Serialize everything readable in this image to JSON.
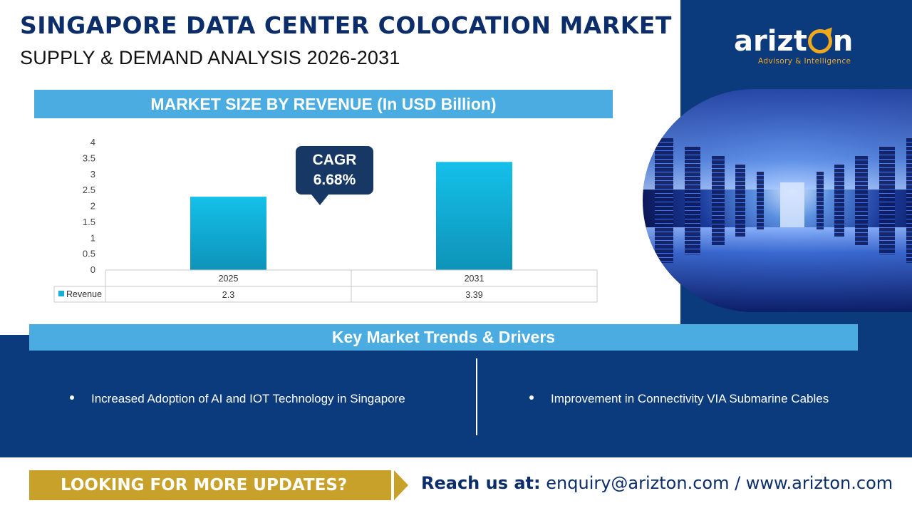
{
  "header": {
    "title": "SINGAPORE DATA CENTER COLOCATION MARKET",
    "subtitle": "SUPPLY & DEMAND ANALYSIS 2026-2031"
  },
  "brand": {
    "name_prefix": "arizt",
    "name_suffix": "n",
    "tagline": "Advisory & Intelligence",
    "accent": "#f0a81c",
    "panel_color": "#0b3b7c"
  },
  "chart_section": {
    "heading": "MARKET SIZE BY REVENUE (In USD Billion)",
    "cagr_label": "CAGR",
    "cagr_value": "6.68%"
  },
  "chart_data": {
    "type": "bar",
    "categories": [
      "2025",
      "2031"
    ],
    "series": [
      {
        "name": "Revenue",
        "values": [
          2.3,
          3.39
        ],
        "color": "#18aed6"
      }
    ],
    "ylim": [
      0,
      4
    ],
    "yticks": [
      "0",
      "0.5",
      "1",
      "1.5",
      "2",
      "2.5",
      "3",
      "3.5",
      "4"
    ],
    "ytick_values": [
      0,
      0.5,
      1,
      1.5,
      2,
      2.5,
      3,
      3.5,
      4
    ],
    "data_table": {
      "row_label": "Revenue",
      "values": [
        "2.3",
        "3.39"
      ]
    },
    "grid": false,
    "legend": "data-table"
  },
  "trends": {
    "heading": "Key Market Trends & Drivers",
    "items": [
      "Increased Adoption of AI and IOT Technology in Singapore",
      "Improvement in Connectivity VIA Submarine Cables"
    ]
  },
  "footer": {
    "cta": "LOOKING FOR MORE UPDATES?",
    "contact_label": "Reach us at:",
    "contact_value": "enquiry@arizton.com / www.arizton.com",
    "cta_color": "#c8a12a"
  }
}
